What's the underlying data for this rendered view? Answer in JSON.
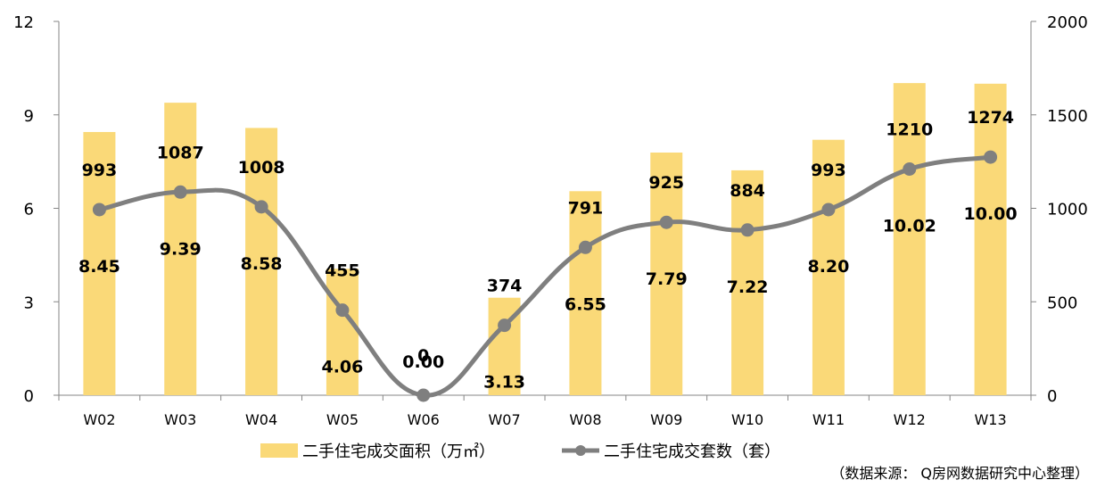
{
  "chart_data": {
    "type": "bar+line",
    "categories": [
      "W02",
      "W03",
      "W04",
      "W05",
      "W06",
      "W07",
      "W08",
      "W09",
      "W10",
      "W11",
      "W12",
      "W13"
    ],
    "series": [
      {
        "name": "二手住宅成交面积（万㎡）",
        "type": "bar",
        "axis": "left",
        "values": [
          8.45,
          9.39,
          8.58,
          4.06,
          0.0,
          3.13,
          6.55,
          7.79,
          7.22,
          8.2,
          10.02,
          10.0
        ],
        "labels": [
          "8.45",
          "9.39",
          "8.58",
          "4.06",
          "0.00",
          "3.13",
          "6.55",
          "7.79",
          "7.22",
          "8.20",
          "10.02",
          "10.00"
        ],
        "color": "#FAD978"
      },
      {
        "name": "二手住宅成交套数（套）",
        "type": "line",
        "axis": "right",
        "values": [
          993,
          1087,
          1008,
          455,
          0,
          374,
          791,
          925,
          884,
          993,
          1210,
          1274
        ],
        "labels": [
          "993",
          "1087",
          "1008",
          "455",
          "0",
          "374",
          "791",
          "925",
          "884",
          "993",
          "1210",
          "1274"
        ],
        "color": "#7F7F7F"
      }
    ],
    "y_left": {
      "ylim": [
        0,
        12
      ],
      "ticks": [
        "0",
        "3",
        "6",
        "9",
        "12"
      ]
    },
    "y_right": {
      "ylim": [
        0,
        2000
      ],
      "ticks": [
        "0",
        "500",
        "1000",
        "1500",
        "2000"
      ]
    },
    "legend_position": "bottom",
    "grid": false
  },
  "source_note": "（数据来源： Q房网数据研究中心整理）"
}
